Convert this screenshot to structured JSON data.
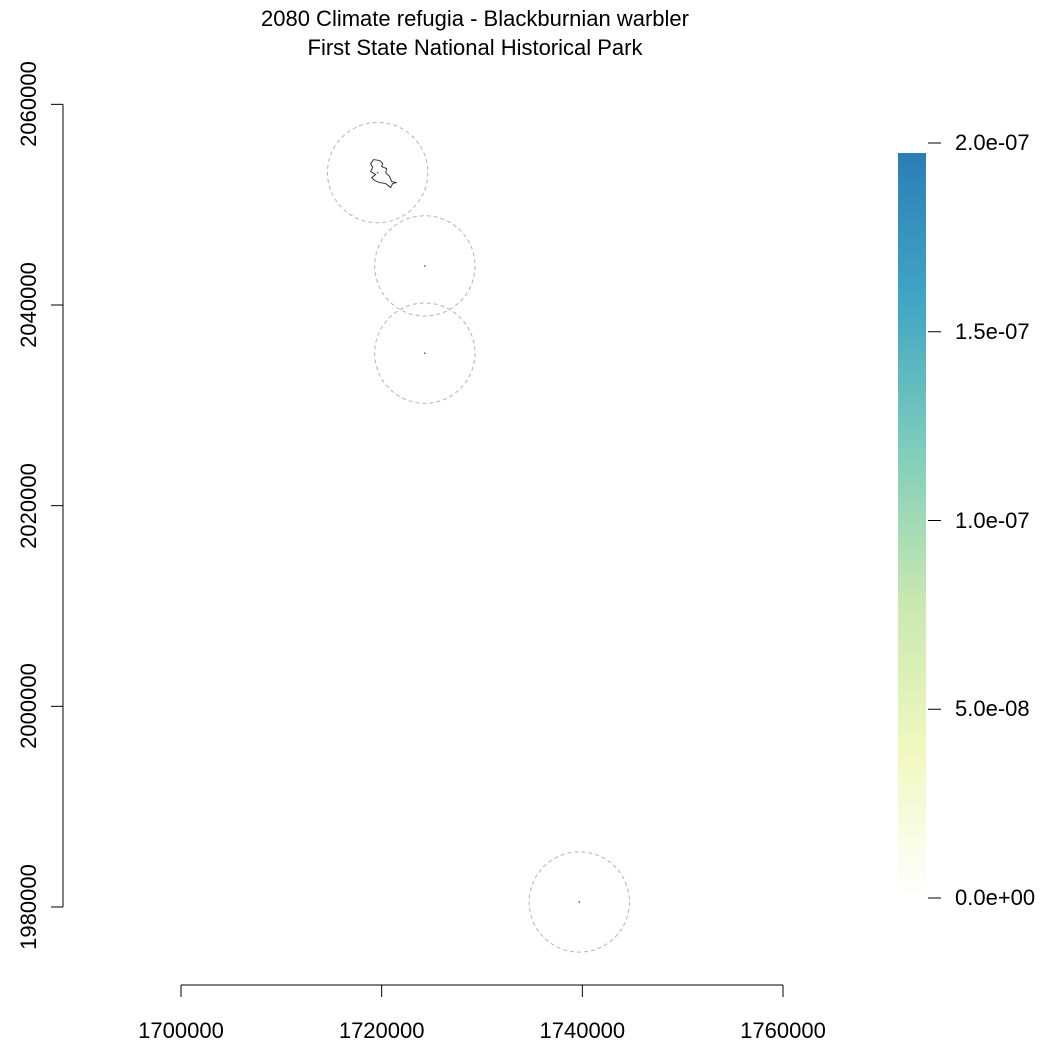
{
  "title": "2080 Climate refugia - Blackburnian warbler",
  "subtitle": "First State National Historical Park",
  "map": {
    "x_axis": {
      "ticks": [
        1700000,
        1720000,
        1740000,
        1760000
      ],
      "tick_labels": [
        "1700000",
        "1720000",
        "1740000",
        "1760000"
      ]
    },
    "y_axis": {
      "ticks": [
        1980000,
        2000000,
        2020000,
        2040000,
        2060000
      ],
      "tick_labels": [
        "1980000",
        "2000000",
        "2020000",
        "2040000",
        "2060000"
      ]
    },
    "buffer_style": "dashed grey",
    "park_units": [
      {
        "name": "park-unit-north",
        "center": [
          1719600,
          2053200
        ]
      },
      {
        "name": "park-unit-middle",
        "center": [
          1724300,
          2043900
        ]
      },
      {
        "name": "park-unit-lower",
        "center": [
          1724300,
          2035200
        ]
      },
      {
        "name": "park-unit-south",
        "center": [
          1739700,
          1980500
        ]
      }
    ],
    "buffer_radius": 5000
  },
  "legend": {
    "ticks": [
      0,
      5e-08,
      1e-07,
      1.5e-07,
      2e-07
    ],
    "tick_labels": [
      "0.0e+00",
      "5.0e-08",
      "1.0e-07",
      "1.5e-07",
      "2.0e-07"
    ],
    "min": 0,
    "max": 2e-07,
    "colors": [
      "#ffffff",
      "#f0f8bf",
      "#c8e8b0",
      "#7fcdbb",
      "#41a6c4",
      "#2b7eb8"
    ]
  }
}
